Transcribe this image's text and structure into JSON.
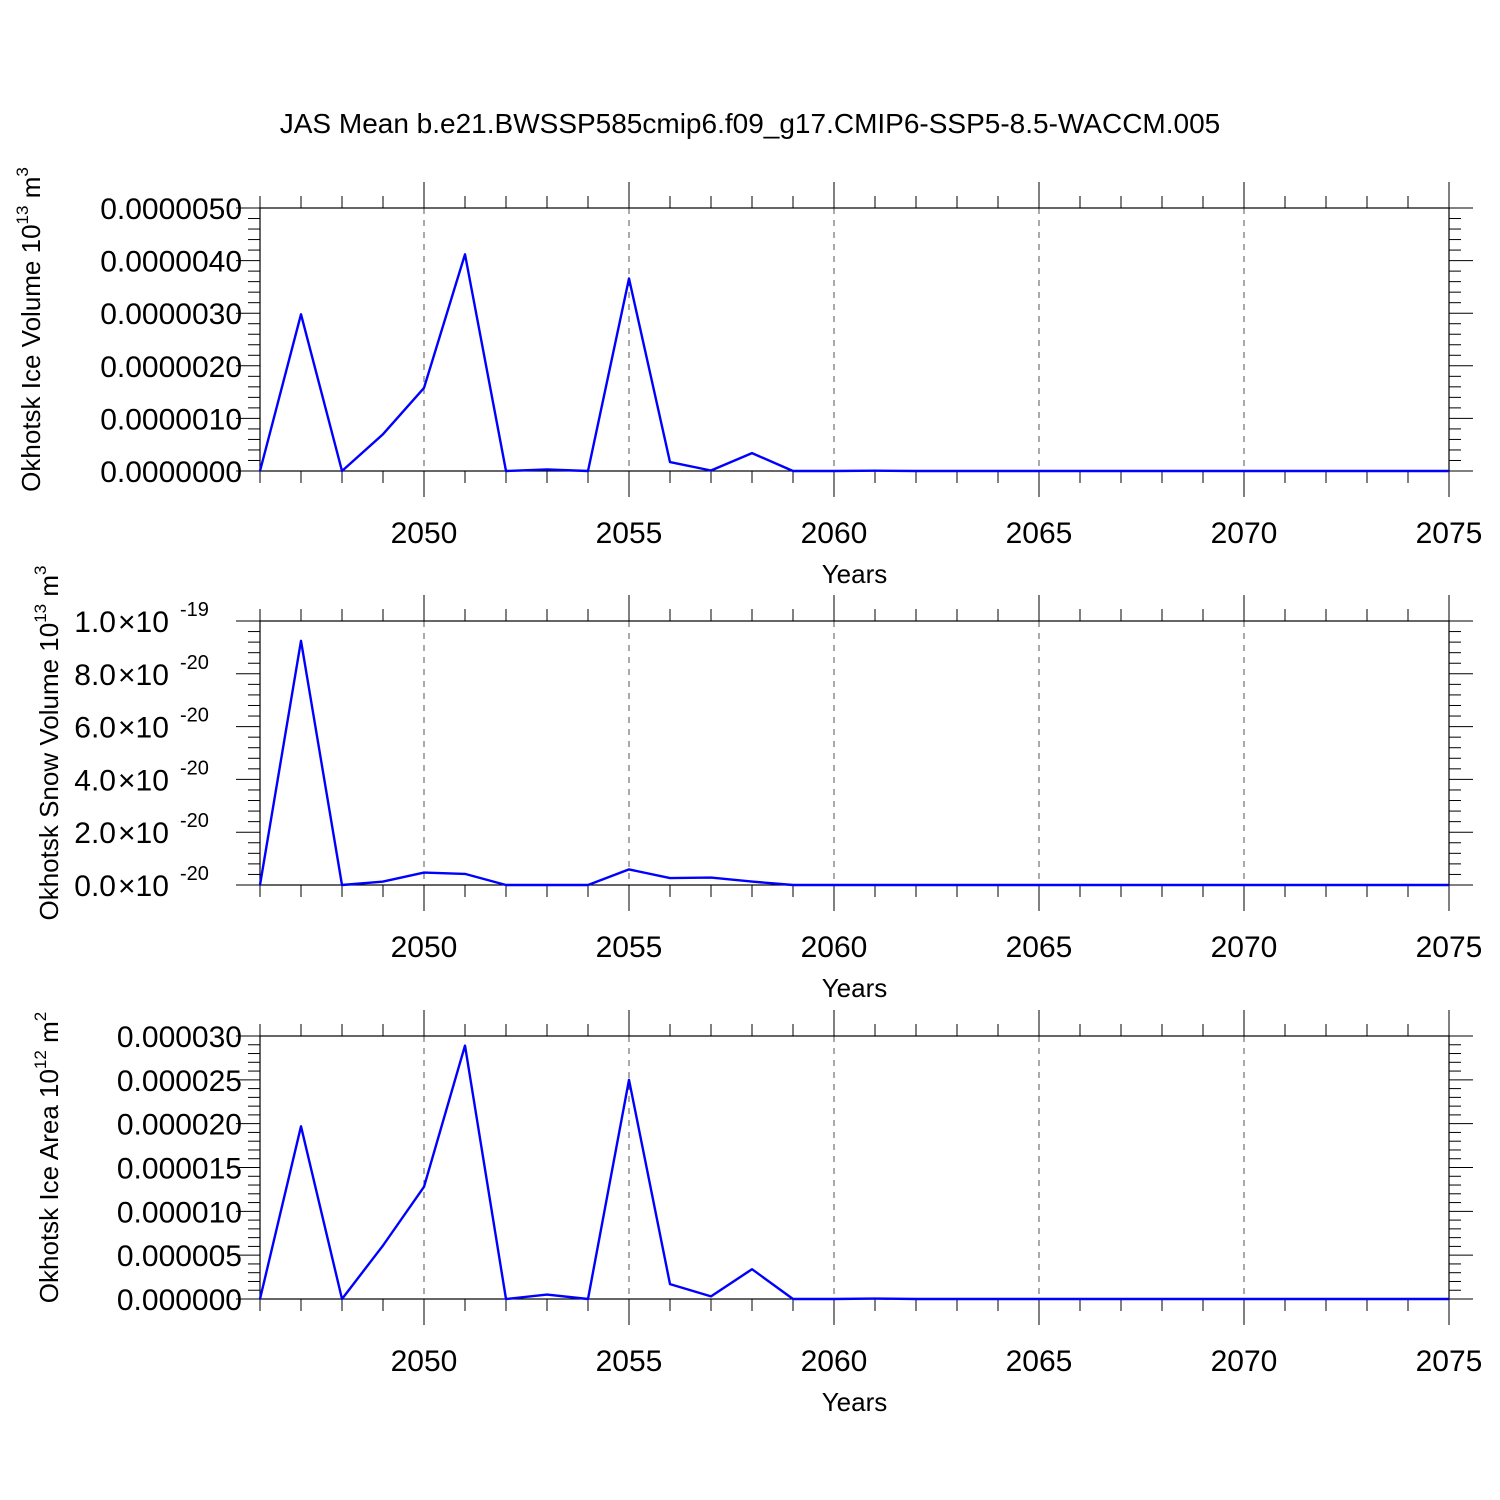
{
  "title": "JAS Mean b.e21.BWSSP585cmip6.f09_g17.CMIP6-SSP5-8.5-WACCM.005",
  "colors": {
    "line": "#0000ff",
    "grid": "#555555"
  },
  "chart_data": [
    {
      "type": "line",
      "xlabel": "Years",
      "ylabel": "Okhotsk Ice Volume 10",
      "ylabel_exp": "13",
      "ylabel_unit": " m",
      "ylabel_unit_exp": "3",
      "xlim": [
        2046,
        2075
      ],
      "ylim": [
        0,
        5e-06
      ],
      "x_ticks": [
        2050,
        2055,
        2060,
        2065,
        2070,
        2075
      ],
      "y_ticks": [
        {
          "value": 0.0,
          "label": "0.0000000"
        },
        {
          "value": 1e-06,
          "label": "0.0000010"
        },
        {
          "value": 2e-06,
          "label": "0.0000020"
        },
        {
          "value": 3e-06,
          "label": "0.0000030"
        },
        {
          "value": 4e-06,
          "label": "0.0000040"
        },
        {
          "value": 5e-06,
          "label": "0.0000050"
        }
      ],
      "grid": "dashed vertical at major x ticks",
      "x": [
        2046,
        2047,
        2048,
        2049,
        2050,
        2051,
        2052,
        2053,
        2054,
        2055,
        2056,
        2057,
        2058,
        2059,
        2060,
        2061,
        2062,
        2063,
        2064,
        2065,
        2066,
        2067,
        2068,
        2069,
        2070,
        2071,
        2072,
        2073,
        2074,
        2075
      ],
      "y": [
        0,
        2.98e-06,
        0,
        7e-07,
        1.58e-06,
        4.12e-06,
        0,
        3e-08,
        0,
        3.66e-06,
        1.7e-07,
        1e-08,
        3.4e-07,
        0,
        0,
        5e-09,
        0,
        0,
        0,
        0,
        0,
        0,
        0,
        0,
        0,
        0,
        0,
        0,
        0,
        0
      ]
    },
    {
      "type": "line",
      "xlabel": "Years",
      "ylabel": "Okhotsk Snow Volume 10",
      "ylabel_exp": "13",
      "ylabel_unit": " m",
      "ylabel_unit_exp": "3",
      "xlim": [
        2046,
        2075
      ],
      "ylim": [
        0,
        1e-19
      ],
      "x_ticks": [
        2050,
        2055,
        2060,
        2065,
        2070,
        2075
      ],
      "y_ticks": [
        {
          "value": 0,
          "mant": "0.0",
          "exp": "-20"
        },
        {
          "value": 2e-20,
          "mant": "2.0",
          "exp": "-20"
        },
        {
          "value": 4e-20,
          "mant": "4.0",
          "exp": "-20"
        },
        {
          "value": 6e-20,
          "mant": "6.0",
          "exp": "-20"
        },
        {
          "value": 8e-20,
          "mant": "8.0",
          "exp": "-20"
        },
        {
          "value": 1e-19,
          "mant": "1.0",
          "exp": "-19"
        }
      ],
      "y_tick_base": "×10",
      "grid": "dashed vertical at major x ticks",
      "x": [
        2046,
        2047,
        2048,
        2049,
        2050,
        2051,
        2052,
        2053,
        2054,
        2055,
        2056,
        2057,
        2058,
        2059,
        2060,
        2061,
        2062,
        2063,
        2064,
        2065,
        2066,
        2067,
        2068,
        2069,
        2070,
        2071,
        2072,
        2073,
        2074,
        2075
      ],
      "y": [
        0,
        9.25e-20,
        0,
        1.3e-21,
        4.7e-21,
        4.2e-21,
        0,
        0,
        0,
        5.9e-21,
        2.6e-21,
        2.8e-21,
        1.3e-21,
        0,
        0,
        0,
        0,
        0,
        0,
        0,
        0,
        0,
        0,
        0,
        0,
        0,
        0,
        0,
        0,
        0
      ]
    },
    {
      "type": "line",
      "xlabel": "Years",
      "ylabel": "Okhotsk Ice Area 10",
      "ylabel_exp": "12",
      "ylabel_unit": " m",
      "ylabel_unit_exp": "2",
      "xlim": [
        2046,
        2075
      ],
      "ylim": [
        0,
        3e-05
      ],
      "x_ticks": [
        2050,
        2055,
        2060,
        2065,
        2070,
        2075
      ],
      "y_ticks": [
        {
          "value": 0.0,
          "label": "0.000000"
        },
        {
          "value": 5e-06,
          "label": "0.000005"
        },
        {
          "value": 1e-05,
          "label": "0.000010"
        },
        {
          "value": 1.5e-05,
          "label": "0.000015"
        },
        {
          "value": 2e-05,
          "label": "0.000020"
        },
        {
          "value": 2.5e-05,
          "label": "0.000025"
        },
        {
          "value": 3e-05,
          "label": "0.000030"
        }
      ],
      "grid": "dashed vertical at major x ticks",
      "x": [
        2046,
        2047,
        2048,
        2049,
        2050,
        2051,
        2052,
        2053,
        2054,
        2055,
        2056,
        2057,
        2058,
        2059,
        2060,
        2061,
        2062,
        2063,
        2064,
        2065,
        2066,
        2067,
        2068,
        2069,
        2070,
        2071,
        2072,
        2073,
        2074,
        2075
      ],
      "y": [
        0,
        1.97e-05,
        0,
        6.1e-06,
        1.28e-05,
        2.89e-05,
        0,
        5e-07,
        0,
        2.5e-05,
        1.7e-06,
        3e-07,
        3.4e-06,
        0,
        0,
        5e-08,
        0,
        0,
        0,
        0,
        0,
        0,
        0,
        0,
        0,
        0,
        0,
        0,
        0,
        0
      ]
    }
  ]
}
